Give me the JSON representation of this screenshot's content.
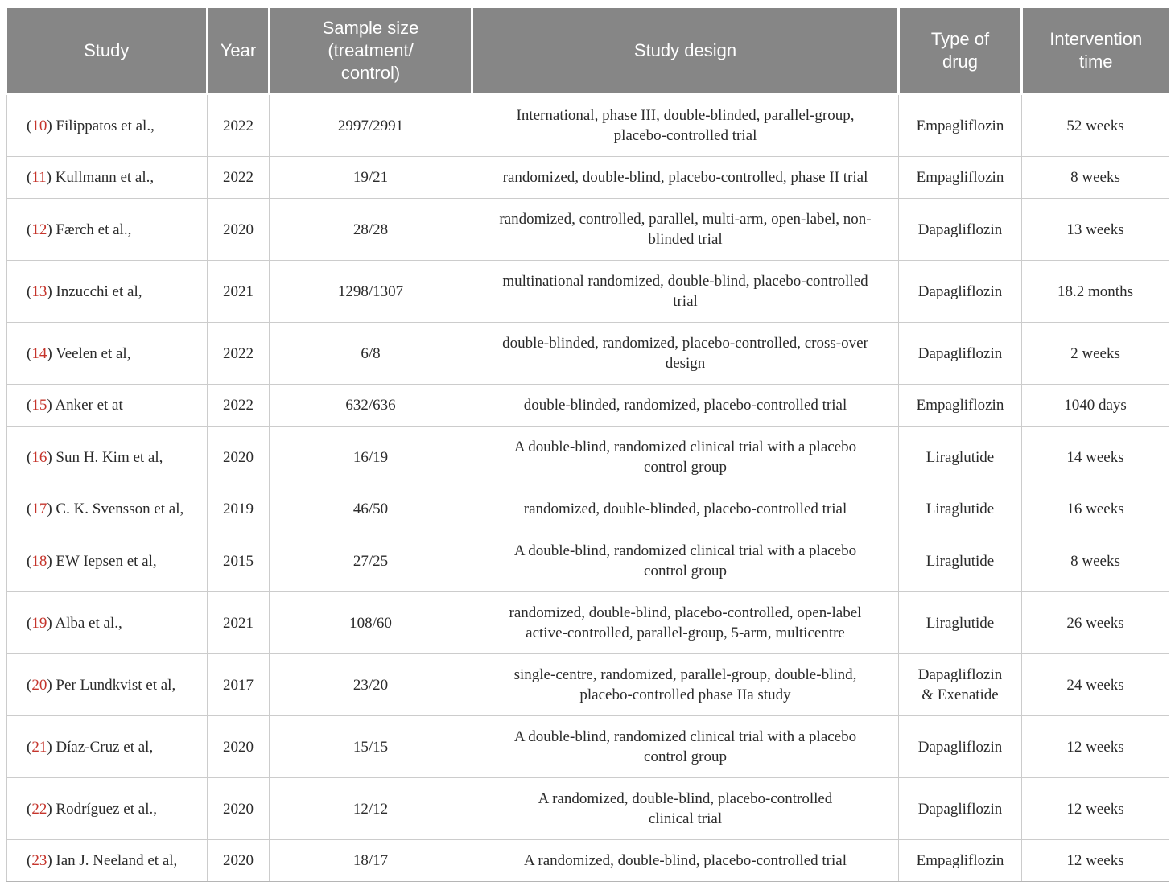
{
  "table": {
    "columns": [
      {
        "key": "study",
        "label": "Study"
      },
      {
        "key": "year",
        "label": "Year"
      },
      {
        "key": "sample",
        "label": "Sample size\n(treatment/\ncontrol)"
      },
      {
        "key": "design",
        "label": "Study design"
      },
      {
        "key": "drug",
        "label": "Type of\ndrug"
      },
      {
        "key": "time",
        "label": "Intervention\ntime"
      }
    ],
    "colors": {
      "header_background": "#868686",
      "header_text": "#ffffff",
      "body_text": "#2b2b2b",
      "reference_red": "#c5342b",
      "grid_line": "#cccccc"
    },
    "rows": [
      {
        "ref": "10",
        "study": "Filippatos et al.,",
        "year": "2022",
        "sample": "2997/2991",
        "design": "International, phase III, double-blinded, parallel-group,\nplacebo-controlled trial",
        "drug": "Empagliflozin",
        "time": "52 weeks"
      },
      {
        "ref": "11",
        "study": "Kullmann et al.,",
        "year": "2022",
        "sample": "19/21",
        "design": "randomized, double-blind, placebo-controlled, phase II trial",
        "drug": "Empagliflozin",
        "time": "8 weeks"
      },
      {
        "ref": "12",
        "study": "Færch et al.,",
        "year": "2020",
        "sample": "28/28",
        "design": "randomized, controlled, parallel, multi-arm, open-label, non-\nblinded trial",
        "drug": "Dapagliflozin",
        "time": "13 weeks"
      },
      {
        "ref": "13",
        "study": "Inzucchi et al,",
        "year": "2021",
        "sample": "1298/1307",
        "design": "multinational randomized, double-blind, placebo-controlled\ntrial",
        "drug": "Dapagliflozin",
        "time": "18.2 months"
      },
      {
        "ref": "14",
        "study": "Veelen et al,",
        "year": "2022",
        "sample": "6/8",
        "design": "double-blinded, randomized, placebo-controlled, cross-over\ndesign",
        "drug": "Dapagliflozin",
        "time": "2 weeks"
      },
      {
        "ref": "15",
        "study": "Anker et at",
        "year": "2022",
        "sample": "632/636",
        "design": "double-blinded, randomized, placebo-controlled trial",
        "drug": "Empagliflozin",
        "time": "1040 days"
      },
      {
        "ref": "16",
        "study": "Sun H. Kim et al,",
        "year": "2020",
        "sample": "16/19",
        "design": "A double-blind, randomized clinical trial with a placebo\ncontrol group",
        "drug": "Liraglutide",
        "time": "14 weeks"
      },
      {
        "ref": "17",
        "study": "C. K. Svensson et al,",
        "year": "2019",
        "sample": "46/50",
        "design": "randomized, double-blinded, placebo-controlled trial",
        "drug": "Liraglutide",
        "time": "16 weeks"
      },
      {
        "ref": "18",
        "study": "EW Iepsen et al,",
        "year": "2015",
        "sample": "27/25",
        "design": "A double-blind, randomized clinical trial with a placebo\ncontrol group",
        "drug": "Liraglutide",
        "time": "8 weeks"
      },
      {
        "ref": "19",
        "study": "Alba et al.,",
        "year": "2021",
        "sample": "108/60",
        "design": "randomized, double-blind, placebo-controlled, open-label\nactive-controlled, parallel-group, 5-arm, multicentre",
        "drug": "Liraglutide",
        "time": "26 weeks"
      },
      {
        "ref": "20",
        "study": "Per Lundkvist et al,",
        "year": "2017",
        "sample": "23/20",
        "design": "single-centre, randomized, parallel-group, double-blind,\nplacebo-controlled phase IIa study",
        "drug": "Dapagliflozin\n& Exenatide",
        "time": "24 weeks"
      },
      {
        "ref": "21",
        "study": "Díaz-Cruz et al,",
        "year": "2020",
        "sample": "15/15",
        "design": "A double-blind, randomized clinical trial with a placebo\ncontrol group",
        "drug": "Dapagliflozin",
        "time": "12 weeks"
      },
      {
        "ref": "22",
        "study": "Rodríguez et al.,",
        "year": "2020",
        "sample": "12/12",
        "design": "A randomized, double-blind, placebo-controlled\nclinical trial",
        "drug": "Dapagliflozin",
        "time": "12 weeks"
      },
      {
        "ref": "23",
        "study": "Ian J. Neeland et al,",
        "year": "2020",
        "sample": "18/17",
        "design": "A randomized, double-blind, placebo-controlled trial",
        "drug": "Empagliflozin",
        "time": "12 weeks"
      }
    ]
  }
}
